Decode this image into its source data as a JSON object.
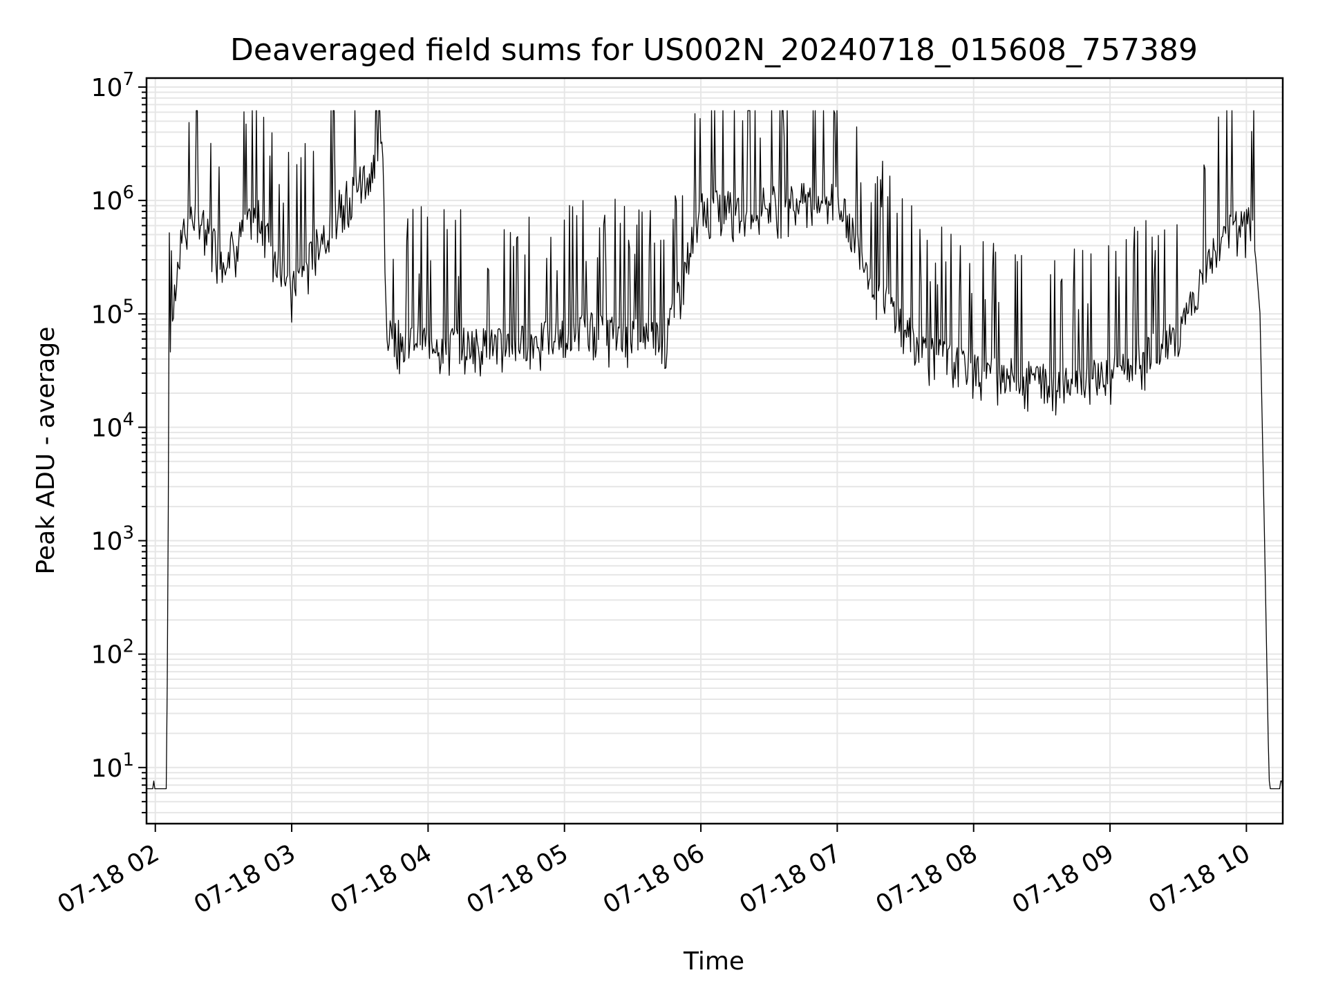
{
  "chart_data": {
    "type": "line",
    "title": "Deaveraged field sums for US002N_20240718_015608_757389",
    "xlabel": "Time",
    "ylabel": "Peak ADU - average",
    "yscale": "log",
    "ylim": [
      3.2,
      12000000
    ],
    "xlim": [
      "2024-07-18T01:56:08",
      "2024-07-18T10:16:00"
    ],
    "grid": true,
    "x_ticks": [
      {
        "value": "2024-07-18T02:00",
        "label": "07-18 02"
      },
      {
        "value": "2024-07-18T03:00",
        "label": "07-18 03"
      },
      {
        "value": "2024-07-18T04:00",
        "label": "07-18 04"
      },
      {
        "value": "2024-07-18T05:00",
        "label": "07-18 05"
      },
      {
        "value": "2024-07-18T06:00",
        "label": "07-18 06"
      },
      {
        "value": "2024-07-18T07:00",
        "label": "07-18 07"
      },
      {
        "value": "2024-07-18T08:00",
        "label": "07-18 08"
      },
      {
        "value": "2024-07-18T09:00",
        "label": "07-18 09"
      },
      {
        "value": "2024-07-18T10:00",
        "label": "07-18 10"
      }
    ],
    "y_ticks": [
      {
        "value": 10,
        "base": "10",
        "exp": "1"
      },
      {
        "value": 100,
        "base": "10",
        "exp": "2"
      },
      {
        "value": 1000,
        "base": "10",
        "exp": "3"
      },
      {
        "value": 10000,
        "base": "10",
        "exp": "4"
      },
      {
        "value": 100000,
        "base": "10",
        "exp": "5"
      },
      {
        "value": 1000000,
        "base": "10",
        "exp": "6"
      },
      {
        "value": 10000000,
        "base": "10",
        "exp": "7"
      }
    ],
    "series": [
      {
        "color": "#000000",
        "x": [
          "2024-07-18T01:56:08",
          "2024-07-18T02:05:00",
          "2024-07-18T02:06:00",
          "2024-07-18T02:08:00",
          "2024-07-18T02:12:00",
          "2024-07-18T02:18:00",
          "2024-07-18T02:30:00",
          "2024-07-18T02:45:00",
          "2024-07-18T03:00:00",
          "2024-07-18T03:20:00",
          "2024-07-18T03:40:00",
          "2024-07-18T03:42:00",
          "2024-07-18T04:00:00",
          "2024-07-18T04:30:00",
          "2024-07-18T05:00:00",
          "2024-07-18T05:10:00",
          "2024-07-18T05:45:00",
          "2024-07-18T06:00:00",
          "2024-07-18T06:30:00",
          "2024-07-18T07:00:00",
          "2024-07-18T07:15:00",
          "2024-07-18T07:35:00",
          "2024-07-18T08:00:00",
          "2024-07-18T08:30:00",
          "2024-07-18T09:00:00",
          "2024-07-18T09:30:00",
          "2024-07-18T09:50:00",
          "2024-07-18T10:03:00",
          "2024-07-18T10:06:00",
          "2024-07-18T10:08:00",
          "2024-07-18T10:10:00",
          "2024-07-18T10:12:00",
          "2024-07-18T10:16:00"
        ],
        "y": [
          6.5,
          6.5,
          30000,
          100000,
          550000,
          700000,
          300000,
          700000,
          150000,
          800000,
          2500000,
          60000,
          55000,
          50000,
          60000,
          70000,
          60000,
          800000,
          900000,
          1000000,
          200000,
          50000,
          30000,
          25000,
          28000,
          60000,
          500000,
          600000,
          100000,
          1000,
          6.5,
          6.5,
          6.5
        ]
      }
    ]
  }
}
